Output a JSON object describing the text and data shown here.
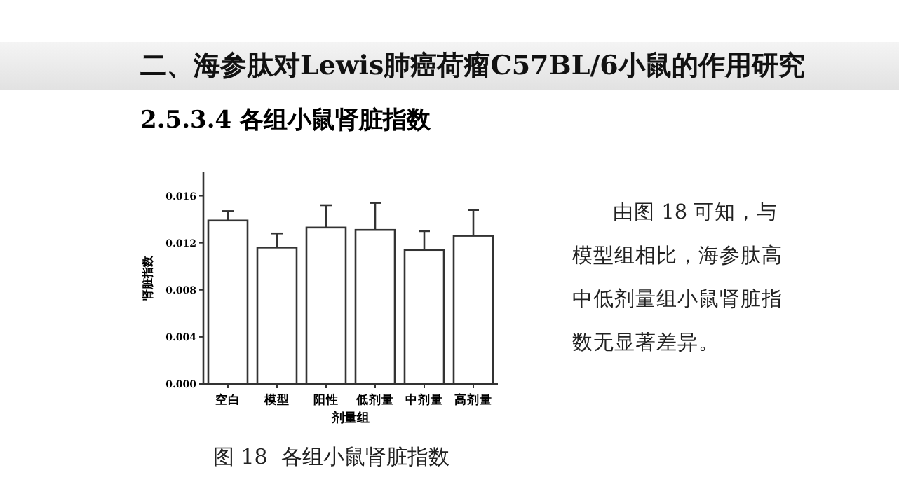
{
  "chart_data": {
    "type": "bar",
    "title": "二、海参肽对Lewis肺癌荷瘤C57BL/6小鼠的作用研究",
    "subtitle": "2.5.3.4 各组小鼠肾脏指数",
    "xlabel": "剂量组",
    "ylabel": "肾脏指数",
    "categories": [
      "空白",
      "模型",
      "阳性",
      "低剂量",
      "中剂量",
      "高剂量"
    ],
    "values": [
      0.0139,
      0.0116,
      0.0133,
      0.0131,
      0.0114,
      0.0126
    ],
    "errors": [
      [
        0.0139,
        0.0147
      ],
      [
        0.0116,
        0.0128
      ],
      [
        0.0133,
        0.0152
      ],
      [
        0.0131,
        0.0154
      ],
      [
        0.0114,
        0.013
      ],
      [
        0.0126,
        0.0148
      ]
    ],
    "color": "#ffffff",
    "ylim": [
      0,
      0.018
    ],
    "yticks": [
      {
        "value": 0,
        "label": "0.000"
      },
      {
        "value": 0.004,
        "label": "0.004"
      },
      {
        "value": 0.008,
        "label": "0.008"
      },
      {
        "value": 0.012,
        "label": "0.012"
      },
      {
        "value": 0.016,
        "label": "0.016"
      }
    ],
    "annotations": [
      "由图 18 可知，与模型组相比，海参肽高中低剂量组小鼠肾脏指数无显著差异。",
      "图 18  各组小鼠肾脏指数"
    ]
  }
}
